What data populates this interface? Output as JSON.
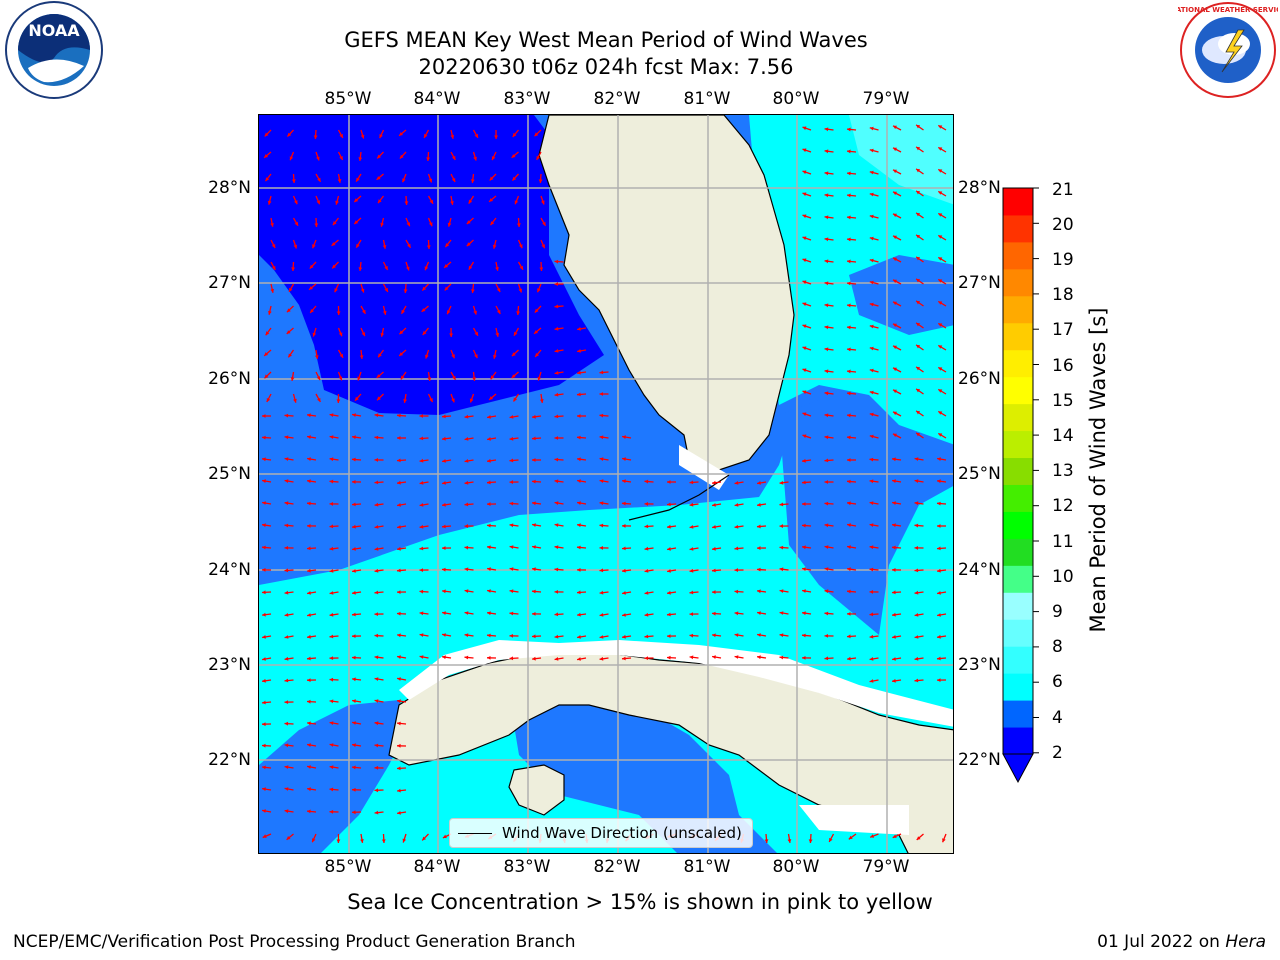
{
  "title": {
    "line1": "GEFS MEAN Key West Mean Period of Wind Waves",
    "line2": "20220630 t06z 024h fcst   Max: 7.56"
  },
  "axes": {
    "lon_labels": [
      "85°W",
      "84°W",
      "83°W",
      "82°W",
      "81°W",
      "80°W",
      "79°W"
    ],
    "lat_labels": [
      "28°N",
      "27°N",
      "26°N",
      "25°N",
      "24°N",
      "23°N",
      "22°N"
    ]
  },
  "legend": {
    "label": "Wind Wave Direction (unscaled)"
  },
  "colorbar": {
    "title": "Mean Period of Wind Waves [s]",
    "ticks": [
      "21",
      "20",
      "19",
      "18",
      "17",
      "16",
      "15",
      "14",
      "13",
      "12",
      "11",
      "10",
      "9",
      "8",
      "6",
      "4",
      "2"
    ],
    "colors": [
      "#0000ff",
      "#0066ff",
      "#00ffff",
      "#33ffff",
      "#66ffff",
      "#99ffff",
      "#44ff88",
      "#22dd22",
      "#00ff00",
      "#44ee00",
      "#88dd00",
      "#bbee00",
      "#ddee00",
      "#ffff00",
      "#ffee00",
      "#ffcc00",
      "#ffaa00",
      "#ff8800",
      "#ff6600",
      "#ff3300",
      "#ff0000"
    ]
  },
  "colors": {
    "land": "#eeeedc",
    "deep_blue": "#0000ff",
    "mid_blue": "#1e78ff",
    "cyan": "#00ffff",
    "light_cyan": "#50ffff",
    "arrows": "#ff0000",
    "grid": "#b0b0b0"
  },
  "footnote": "Sea Ice Concentration > 15% is shown in pink to yellow",
  "credits": {
    "left": "NCEP/EMC/Verification Post Processing Product Generation Branch",
    "right_prefix": "01 Jul 2022 on ",
    "right_host": "Hera"
  },
  "logos": {
    "noaa_text": "NOAA",
    "nws_text": "NATIONAL WEATHER SERVICE"
  }
}
